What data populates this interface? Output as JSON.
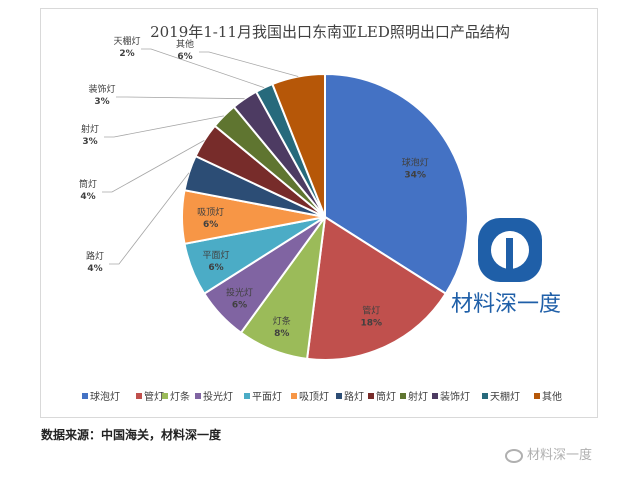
{
  "chart_data": {
    "type": "pie",
    "title": "2019年1-11月我国出口东南亚LED照明出口产品结构",
    "categories": [
      "球泡灯",
      "管灯",
      "灯条",
      "投光灯",
      "平面灯",
      "吸顶灯",
      "路灯",
      "筒灯",
      "射灯",
      "装饰灯",
      "天棚灯",
      "其他"
    ],
    "values": [
      34,
      18,
      8,
      6,
      6,
      6,
      4,
      4,
      3,
      3,
      2,
      6
    ],
    "value_labels": [
      "34%",
      "18%",
      "8%",
      "6%",
      "6%",
      "6%",
      "4%",
      "4%",
      "3%",
      "3%",
      "2%",
      "6%"
    ],
    "colors": [
      "#4472c4",
      "#c0504d",
      "#9bbb59",
      "#8064a2",
      "#4bacc6",
      "#f79646",
      "#2c4d75",
      "#772c2a",
      "#5f7530",
      "#4d3b62",
      "#276a7c",
      "#b65708"
    ],
    "legend_position": "bottom"
  },
  "brand_text": "材料深一度",
  "source_note": "数据来源：中国海关，材料深一度",
  "watermark_text": "材料深一度"
}
